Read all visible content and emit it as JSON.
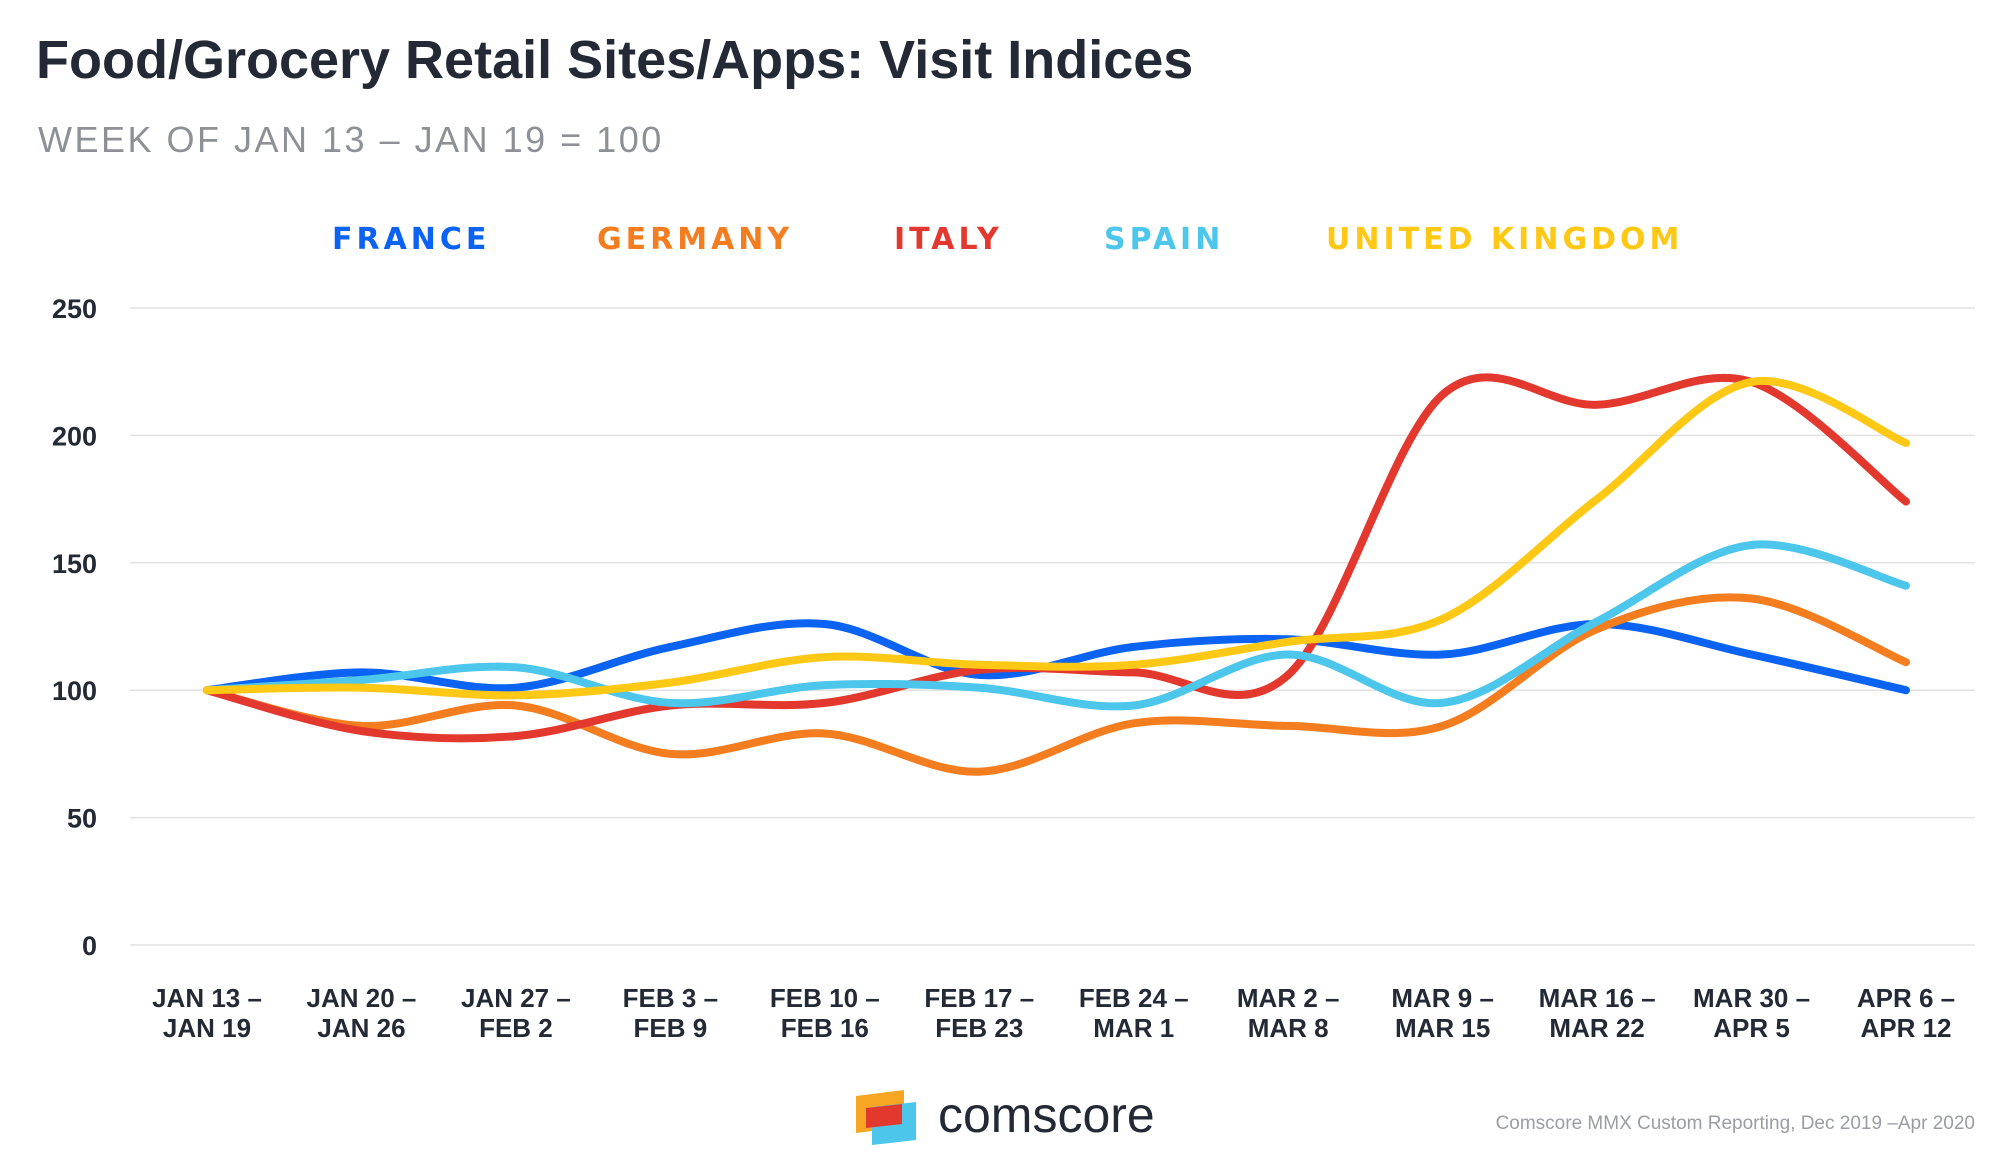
{
  "chart_data": {
    "type": "line",
    "title": "Food/Grocery Retail Sites/Apps: Visit Indices",
    "subtitle": "WEEK OF JAN 13 – JAN 19 = 100",
    "ylim": [
      0,
      250
    ],
    "yticks": [
      0,
      50,
      100,
      150,
      200,
      250
    ],
    "grid": true,
    "legend_placement": "top",
    "categories": [
      [
        "JAN 13 –",
        "JAN 19"
      ],
      [
        "JAN 20 –",
        "JAN 26"
      ],
      [
        "JAN 27 –",
        "FEB 2"
      ],
      [
        "FEB 3 –",
        "FEB 9"
      ],
      [
        "FEB 10 –",
        "FEB 16"
      ],
      [
        "FEB 17 –",
        "FEB 23"
      ],
      [
        "FEB 24 –",
        "MAR 1"
      ],
      [
        "MAR 2 –",
        "MAR 8"
      ],
      [
        "MAR 9 –",
        "MAR 15"
      ],
      [
        "MAR 16 –",
        "MAR 22"
      ],
      [
        "MAR 30 –",
        "APR 5"
      ],
      [
        "APR 6 –",
        "APR 12"
      ]
    ],
    "series": [
      {
        "name": "FRANCE",
        "color": "#0A63F2",
        "values": [
          100,
          107,
          101,
          117,
          126,
          106,
          117,
          120,
          114,
          126,
          114,
          100
        ]
      },
      {
        "name": "GERMANY",
        "color": "#F47D20",
        "values": [
          100,
          86,
          94,
          75,
          83,
          68,
          87,
          86,
          86,
          124,
          136,
          111
        ]
      },
      {
        "name": "ITALY",
        "color": "#E2382E",
        "values": [
          100,
          84,
          82,
          94,
          95,
          108,
          107,
          106,
          216,
          212,
          221,
          174
        ]
      },
      {
        "name": "SPAIN",
        "color": "#4CC6EB",
        "values": [
          100,
          104,
          109,
          95,
          102,
          101,
          94,
          114,
          95,
          127,
          157,
          141
        ]
      },
      {
        "name": "UNITED KINGDOM",
        "color": "#FFC815",
        "values": [
          100,
          101,
          98,
          103,
          113,
          110,
          110,
          119,
          128,
          175,
          221,
          197
        ]
      }
    ]
  },
  "logo": {
    "text": "comscore"
  },
  "source": "Comscore MMX Custom Reporting, Dec 2019 –Apr 2020"
}
